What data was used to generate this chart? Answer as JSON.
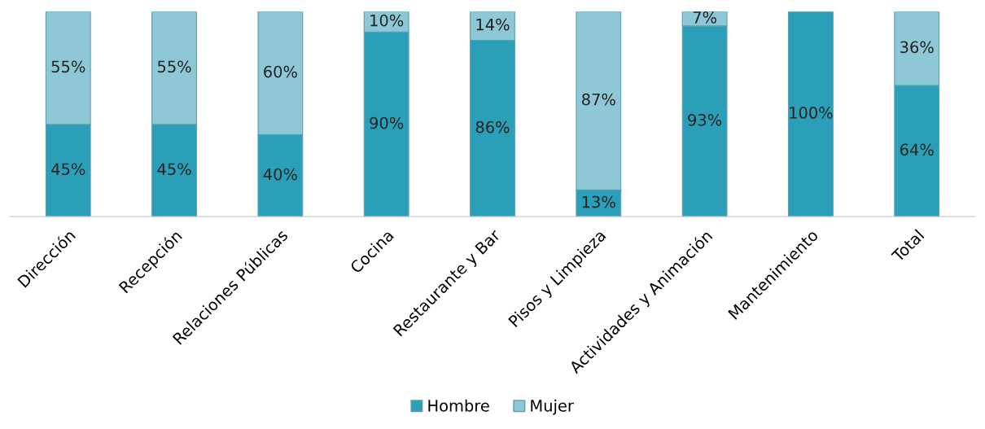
{
  "chart_data": {
    "type": "bar",
    "stacked": true,
    "ylim": [
      0,
      100
    ],
    "legend": "bottom",
    "categories": [
      "Dirección",
      "Recepción",
      "Relaciones Públicas",
      "Cocina",
      "Restaurante y Bar",
      "Pisos y Limpieza",
      "Actividades y Animación",
      "Mantenimiento",
      "Total"
    ],
    "series": [
      {
        "name": "Hombre",
        "color": "#2b9fb8",
        "values": [
          45,
          45,
          40,
          90,
          86,
          13,
          93,
          100,
          64
        ],
        "value_labels": [
          "45%",
          "45%",
          "40%",
          "90%",
          "86%",
          "13%",
          "93%",
          "100%",
          "64%"
        ]
      },
      {
        "name": "Mujer",
        "color": "#8ec8d6",
        "values": [
          55,
          55,
          60,
          10,
          14,
          87,
          7,
          null,
          36
        ],
        "value_labels": [
          "55%",
          "55%",
          "60%",
          "10%",
          "14%",
          "87%",
          "7%",
          null,
          "36%"
        ]
      }
    ]
  }
}
